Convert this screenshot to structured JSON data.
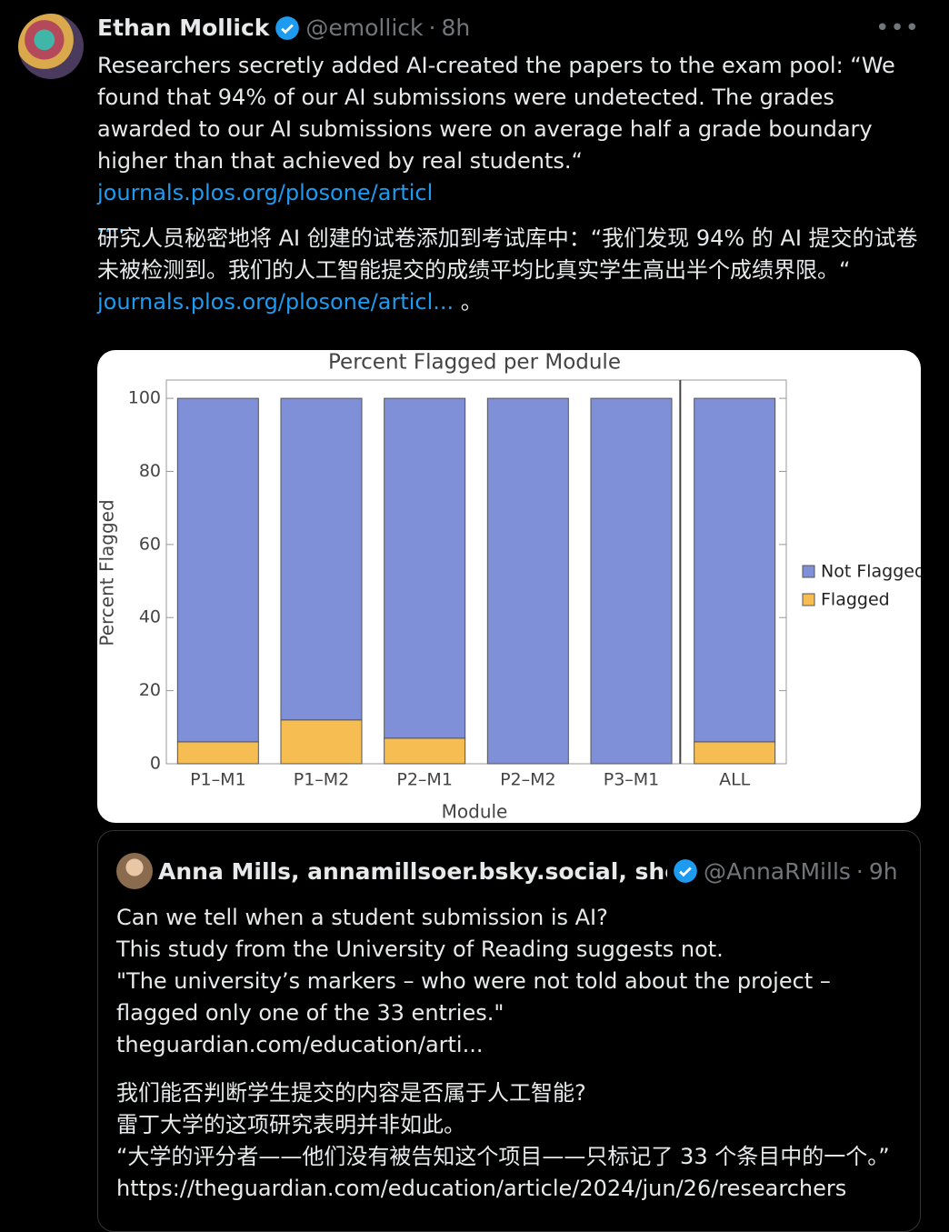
{
  "tweet": {
    "author": "Ethan Mollick",
    "handle": "@emollick",
    "time": "8h",
    "text": "Researchers secretly added AI-created the papers to the exam pool: “We found that 94% of our AI submissions were undetected. The grades awarded to our AI submissions were on average half a grade boundary higher than that achieved by real students.“",
    "link": "journals.plos.org/plosone/articl",
    "link_tail": "....",
    "translation": "研究人员秘密地将 AI 创建的试卷添加到考试库中：“我们发现 94% 的 AI 提交的试卷未被检测到。我们的人工智能提交的成绩平均比真实学生高出半个成绩界限。“",
    "translation_link": "journals.plos.org/plosone/articl...",
    "translation_tail": "。"
  },
  "chart_data": {
    "type": "stacked_bar",
    "title": "Percent Flagged per Module",
    "x_label": "Module",
    "y_label": "Percent Flagged",
    "categories": [
      "P1–M1",
      "P1–M2",
      "P2–M1",
      "P2–M2",
      "P3–M1",
      "ALL"
    ],
    "series": [
      {
        "name": "Flagged",
        "color": "#f6bd52",
        "values": [
          6,
          12,
          7,
          0,
          0,
          6
        ]
      },
      {
        "name": "Not Flagged",
        "color": "#7f90d8",
        "values": [
          94,
          88,
          93,
          100,
          100,
          94
        ]
      }
    ],
    "ylim": [
      0,
      105
    ],
    "yticks": [
      0,
      20,
      40,
      60,
      80,
      100
    ]
  },
  "quote": {
    "author": "Anna Mills, annamillsoer.bsky.social, she/her",
    "handle": "@AnnaRMills",
    "time": "9h",
    "lines": [
      "Can we tell when a student submission is AI?",
      "This study from the University of Reading suggests not.",
      "\"The university’s markers – who were not told about the project – flagged only one of the 33 entries.\"",
      "theguardian.com/education/arti..."
    ],
    "translation_lines": [
      "我们能否判断学生提交的内容是否属于人工智能?",
      "雷丁大学的这项研究表明并非如此。",
      "“大学的评分者——他们没有被告知这个项目——只标记了 33 个条目中的一个。”",
      "https://theguardian.com/education/article/2024/jun/26/researchers"
    ]
  }
}
